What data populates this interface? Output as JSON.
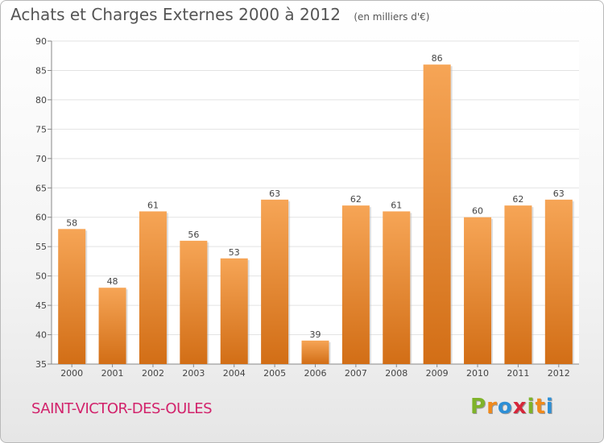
{
  "chart_data": {
    "type": "bar",
    "title": "Achats et Charges Externes 2000 à 2012",
    "subtitle": "(en milliers d'€)",
    "categories": [
      "2000",
      "2001",
      "2002",
      "2003",
      "2004",
      "2005",
      "2006",
      "2007",
      "2008",
      "2009",
      "2010",
      "2011",
      "2012"
    ],
    "values": [
      58,
      48,
      61,
      56,
      53,
      63,
      39,
      62,
      61,
      86,
      60,
      62,
      63
    ],
    "ylim": [
      35,
      90
    ],
    "yticks": [
      35,
      40,
      45,
      50,
      55,
      60,
      65,
      70,
      75,
      80,
      85,
      90
    ],
    "xlabel": "",
    "ylabel": "",
    "bar_color": "#f0922e",
    "grid": true
  },
  "footer": {
    "town": "SAINT-VICTOR-DES-OULES",
    "logo_letters": [
      "P",
      "r",
      "o",
      "x",
      "i",
      "t",
      "i"
    ],
    "logo_colors": [
      "#7fb32a",
      "#f08a1c",
      "#2d8fd6",
      "#d6263a",
      "#7fb32a",
      "#f08a1c",
      "#2d8fd6"
    ]
  }
}
